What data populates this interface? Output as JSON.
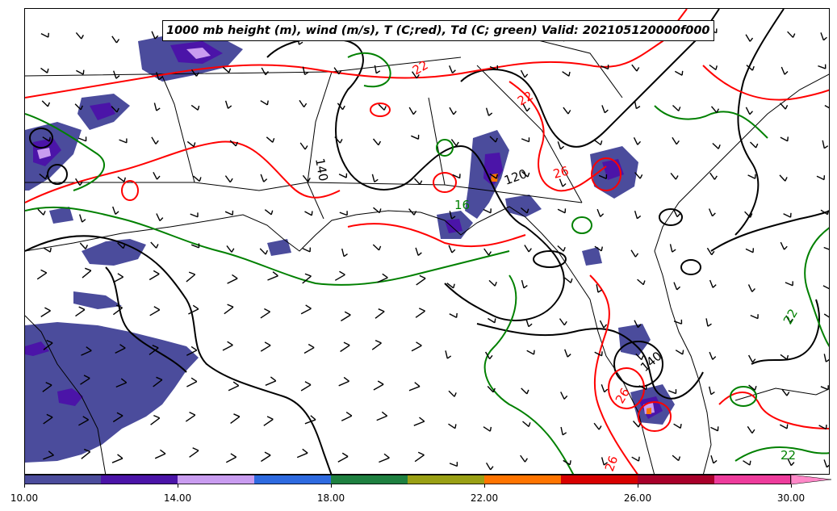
{
  "title": "1000 mb height (m), wind (m/s), T (C;red), Td (C; green) Valid: 202105120000f000",
  "colors": {
    "height_contour": "#000000",
    "temperature_contour": "#ff0000",
    "dewpoint_contour": "#008000",
    "boundaries": "#000000"
  },
  "contour_labels": [
    {
      "text": "22",
      "kind": "temperature"
    },
    {
      "text": "22",
      "kind": "temperature"
    },
    {
      "text": "26",
      "kind": "temperature"
    },
    {
      "text": "26",
      "kind": "temperature"
    },
    {
      "text": "26",
      "kind": "temperature"
    },
    {
      "text": "140",
      "kind": "height"
    },
    {
      "text": "120",
      "kind": "height"
    },
    {
      "text": "140",
      "kind": "height"
    },
    {
      "text": "16",
      "kind": "dewpoint"
    },
    {
      "text": "22",
      "kind": "dewpoint"
    },
    {
      "text": "22",
      "kind": "dewpoint"
    }
  ],
  "colorbar": {
    "colors": [
      "#4b4c9c",
      "#4b14a8",
      "#c99cf0",
      "#2e6ae0",
      "#1e8040",
      "#9aa014",
      "#ff7400",
      "#d80000",
      "#a8002a",
      "#ee3c9c"
    ],
    "extend_color": "#ff88c8",
    "ticks": [
      "10.00",
      "14.00",
      "18.00",
      "22.00",
      "26.00",
      "30.00"
    ]
  }
}
